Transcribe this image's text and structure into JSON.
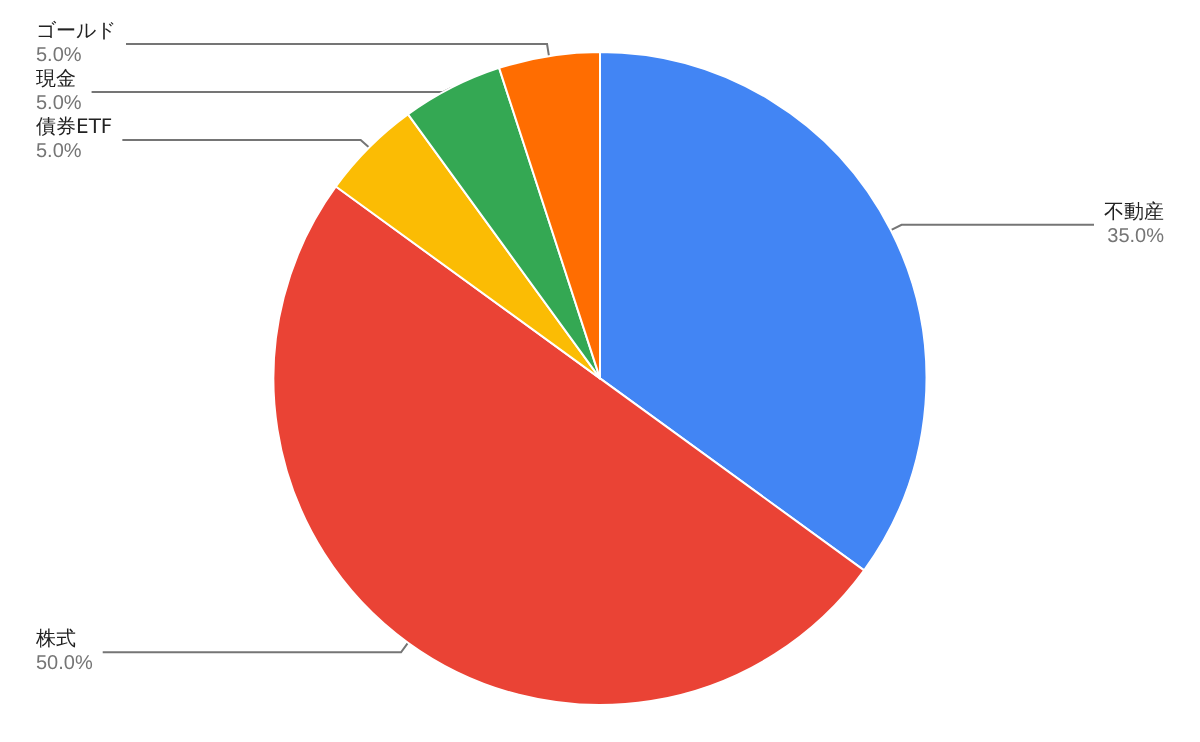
{
  "chart_data": {
    "type": "pie",
    "categories": [
      "不動産",
      "株式",
      "債券ETF",
      "現金",
      "ゴールド"
    ],
    "values": [
      35,
      50,
      5,
      5,
      5
    ],
    "colors": [
      "#4285f4",
      "#ea4335",
      "#fbbc04",
      "#34a853",
      "#ff6d01"
    ],
    "value_labels": [
      "35.0%",
      "50.0%",
      "5.0%",
      "5.0%",
      "5.0%"
    ],
    "legend": false
  }
}
